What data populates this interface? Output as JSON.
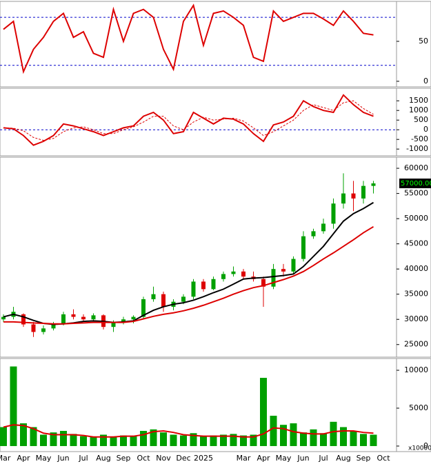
{
  "chart_data": [
    {
      "type": "line",
      "ylim": [
        -7,
        100
      ],
      "yticks": [
        0,
        50
      ],
      "hlines": [
        80,
        20
      ],
      "series": [
        {
          "name": "Stochastic",
          "color": "#dd0000",
          "values": [
            65,
            75,
            12,
            40,
            55,
            75,
            85,
            55,
            62,
            35,
            30,
            90,
            50,
            85,
            90,
            80,
            40,
            15,
            75,
            95,
            45,
            85,
            88,
            80,
            70,
            30,
            25,
            88,
            75,
            80,
            85,
            85,
            78,
            70,
            88,
            75,
            60,
            58,
            null
          ]
        }
      ]
    },
    {
      "type": "line",
      "ylim": [
        -1350,
        2150
      ],
      "yticks": [
        -1000,
        -500,
        0,
        500,
        1000,
        1500
      ],
      "hlines": [
        0
      ],
      "series": [
        {
          "name": "MACD",
          "color": "#dd0000",
          "values": [
            100,
            50,
            -300,
            -800,
            -600,
            -300,
            300,
            200,
            50,
            -100,
            -300,
            -100,
            100,
            200,
            700,
            900,
            500,
            -200,
            -100,
            900,
            600,
            300,
            600,
            550,
            300,
            -200,
            -600,
            250,
            400,
            700,
            1500,
            1200,
            1000,
            900,
            1800,
            1300,
            900,
            700,
            null
          ]
        },
        {
          "name": "Signal",
          "color": "#dd0000",
          "dash": true,
          "values": [
            100,
            80,
            -50,
            -400,
            -550,
            -450,
            -100,
            100,
            150,
            0,
            -200,
            -200,
            0,
            150,
            400,
            700,
            700,
            200,
            0,
            400,
            650,
            500,
            550,
            600,
            450,
            100,
            -300,
            -100,
            200,
            500,
            1000,
            1300,
            1150,
            1000,
            1400,
            1500,
            1100,
            800,
            null
          ]
        }
      ]
    },
    {
      "type": "candlestick",
      "ylim": [
        22500,
        62200
      ],
      "yticks": [
        25000,
        30000,
        35000,
        40000,
        45000,
        50000,
        55000,
        60000
      ],
      "up_color": "#00a000",
      "down_color": "#dd0000",
      "open": [
        30000,
        30500,
        31000,
        29000,
        27500,
        28200,
        29000,
        31000,
        30500,
        30000,
        30800,
        28500,
        29500,
        30000,
        30500,
        34000,
        35000,
        32500,
        33500,
        34500,
        37500,
        36000,
        38000,
        39000,
        39500,
        38500,
        38000,
        36500,
        40000,
        39500,
        42000,
        46500,
        47500,
        49000,
        53000,
        55000,
        54000,
        56500,
        null
      ],
      "high": [
        31000,
        32500,
        31200,
        29500,
        28800,
        29500,
        31500,
        32000,
        31000,
        31200,
        31000,
        29800,
        30500,
        30800,
        34500,
        36500,
        35500,
        34000,
        35000,
        38000,
        38000,
        38500,
        39500,
        40500,
        40000,
        39500,
        38500,
        41000,
        41000,
        42500,
        47500,
        48000,
        50000,
        54000,
        59000,
        57500,
        57500,
        57500,
        null
      ],
      "low": [
        29500,
        30000,
        28500,
        26500,
        27000,
        27800,
        28800,
        30000,
        29500,
        29600,
        28000,
        27500,
        29000,
        29200,
        30200,
        33500,
        31500,
        31800,
        33000,
        34000,
        35500,
        35800,
        37500,
        38500,
        38000,
        37500,
        32500,
        36000,
        38500,
        39000,
        41500,
        46000,
        47000,
        48000,
        52000,
        51500,
        53000,
        55000,
        null
      ],
      "close": [
        30500,
        31500,
        29000,
        27500,
        28200,
        29000,
        31000,
        30500,
        30000,
        30800,
        28500,
        29500,
        30000,
        30500,
        34000,
        35000,
        32500,
        33500,
        34500,
        37500,
        36000,
        38000,
        39000,
        39500,
        38500,
        38000,
        36500,
        40000,
        39500,
        42000,
        46500,
        47500,
        49000,
        53000,
        55000,
        54000,
        56500,
        57000,
        null
      ],
      "last_price": {
        "value": 57000,
        "label": "57000.00"
      },
      "series": [
        {
          "name": "MA short",
          "color": "#000000",
          "values": [
            30500,
            31000,
            30500,
            29800,
            29200,
            29000,
            29100,
            29300,
            29600,
            29700,
            29600,
            29400,
            29500,
            29700,
            30800,
            31800,
            32500,
            33000,
            33300,
            33800,
            34500,
            35300,
            36000,
            37000,
            38000,
            38200,
            38300,
            38500,
            38700,
            39000,
            40500,
            42500,
            44500,
            47000,
            49500,
            51000,
            52000,
            53200,
            null
          ]
        },
        {
          "name": "MA long",
          "color": "#dd0000",
          "values": [
            29500,
            29500,
            29400,
            29300,
            29200,
            29100,
            29100,
            29200,
            29300,
            29400,
            29400,
            29400,
            29400,
            29600,
            30100,
            30600,
            31000,
            31300,
            31700,
            32200,
            32800,
            33500,
            34200,
            35000,
            35700,
            36300,
            36700,
            37300,
            37900,
            38600,
            39500,
            40700,
            42000,
            43200,
            44500,
            45800,
            47200,
            48400,
            null
          ]
        }
      ]
    },
    {
      "type": "bar",
      "ylim": [
        -730,
        11550
      ],
      "yticks": [
        0,
        5000,
        10000
      ],
      "unit_label": "x10000",
      "color": "#00a000",
      "categories": [
        "Mar",
        null,
        "Apr",
        null,
        "May",
        null,
        "Jun",
        null,
        "Jul",
        null,
        "Aug",
        null,
        "Sep",
        null,
        "Oct",
        null,
        "Nov",
        null,
        "Dec",
        null,
        "2025",
        null,
        null,
        null,
        "Mar",
        null,
        "Apr",
        null,
        "May",
        null,
        "Jun",
        null,
        "Jul",
        null,
        "Aug",
        null,
        "Sep",
        null,
        "Oct"
      ],
      "values": [
        2500,
        10500,
        3000,
        2500,
        1500,
        1800,
        2000,
        1600,
        1300,
        1200,
        1500,
        1200,
        1400,
        1300,
        2000,
        2200,
        1800,
        1500,
        1400,
        1700,
        1300,
        1400,
        1500,
        1600,
        1400,
        1500,
        9000,
        4000,
        2800,
        3000,
        1800,
        2200,
        1700,
        3200,
        2500,
        2000,
        1600,
        1500,
        null
      ],
      "series": [
        {
          "name": "Volume MA",
          "color": "#dd0000",
          "values": [
            2500,
            2800,
            2700,
            2300,
            1700,
            1500,
            1500,
            1500,
            1400,
            1200,
            1200,
            1200,
            1300,
            1300,
            1500,
            1900,
            2000,
            1800,
            1500,
            1400,
            1300,
            1300,
            1300,
            1300,
            1200,
            1200,
            1600,
            2400,
            2300,
            1900,
            1700,
            1600,
            1600,
            1900,
            2000,
            2000,
            1800,
            1700,
            null
          ]
        }
      ]
    }
  ]
}
